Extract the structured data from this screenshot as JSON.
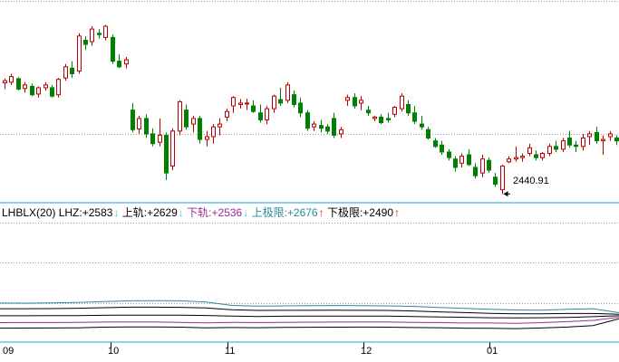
{
  "chart_data": [
    {
      "type": "candlestick",
      "title": "",
      "annotation": {
        "text": "2440.91"
      },
      "candles": [
        [
          2599,
          2605,
          2590,
          2602
        ],
        [
          2600,
          2612,
          2596,
          2608
        ],
        [
          2605,
          2607,
          2588,
          2590
        ],
        [
          2591,
          2600,
          2585,
          2596
        ],
        [
          2594,
          2598,
          2580,
          2582
        ],
        [
          2583,
          2594,
          2578,
          2592
        ],
        [
          2592,
          2600,
          2588,
          2596
        ],
        [
          2592,
          2596,
          2578,
          2580
        ],
        [
          2582,
          2606,
          2578,
          2604
        ],
        [
          2606,
          2626,
          2602,
          2622
        ],
        [
          2620,
          2630,
          2606,
          2612
        ],
        [
          2616,
          2670,
          2612,
          2666
        ],
        [
          2660,
          2666,
          2646,
          2654
        ],
        [
          2658,
          2680,
          2652,
          2676
        ],
        [
          2670,
          2676,
          2662,
          2668
        ],
        [
          2664,
          2682,
          2660,
          2680
        ],
        [
          2664,
          2668,
          2626,
          2630
        ],
        [
          2630,
          2640,
          2620,
          2622
        ],
        [
          2626,
          2636,
          2620,
          2632
        ],
        [
          2560,
          2570,
          2528,
          2532
        ],
        [
          2533,
          2552,
          2526,
          2548
        ],
        [
          2548,
          2554,
          2520,
          2526
        ],
        [
          2526,
          2534,
          2508,
          2512
        ],
        [
          2514,
          2548,
          2508,
          2524
        ],
        [
          2524,
          2528,
          2460,
          2470
        ],
        [
          2480,
          2534,
          2474,
          2530
        ],
        [
          2530,
          2574,
          2524,
          2572
        ],
        [
          2560,
          2568,
          2532,
          2536
        ],
        [
          2540,
          2552,
          2528,
          2548
        ],
        [
          2548,
          2552,
          2512,
          2518
        ],
        [
          2518,
          2530,
          2508,
          2522
        ],
        [
          2522,
          2540,
          2512,
          2536
        ],
        [
          2536,
          2548,
          2524,
          2540
        ],
        [
          2550,
          2562,
          2544,
          2558
        ],
        [
          2566,
          2580,
          2556,
          2578
        ],
        [
          2568,
          2576,
          2562,
          2570
        ],
        [
          2570,
          2576,
          2560,
          2570
        ],
        [
          2566,
          2574,
          2556,
          2558
        ],
        [
          2556,
          2568,
          2542,
          2546
        ],
        [
          2546,
          2566,
          2540,
          2562
        ],
        [
          2562,
          2582,
          2556,
          2580
        ],
        [
          2575,
          2592,
          2566,
          2570
        ],
        [
          2574,
          2600,
          2570,
          2596
        ],
        [
          2582,
          2588,
          2564,
          2568
        ],
        [
          2570,
          2578,
          2550,
          2556
        ],
        [
          2556,
          2560,
          2530,
          2534
        ],
        [
          2536,
          2544,
          2530,
          2540
        ],
        [
          2538,
          2546,
          2528,
          2534
        ],
        [
          2536,
          2540,
          2526,
          2530
        ],
        [
          2548,
          2556,
          2520,
          2524
        ],
        [
          2526,
          2536,
          2520,
          2532
        ],
        [
          2574,
          2582,
          2566,
          2578
        ],
        [
          2578,
          2584,
          2562,
          2566
        ],
        [
          2570,
          2580,
          2560,
          2574
        ],
        [
          2560,
          2566,
          2552,
          2556
        ],
        [
          2548,
          2552,
          2544,
          2550
        ],
        [
          2550,
          2554,
          2540,
          2542
        ],
        [
          2548,
          2556,
          2542,
          2546
        ],
        [
          2554,
          2566,
          2550,
          2564
        ],
        [
          2562,
          2584,
          2558,
          2580
        ],
        [
          2568,
          2574,
          2552,
          2556
        ],
        [
          2556,
          2566,
          2540,
          2544
        ],
        [
          2540,
          2552,
          2532,
          2536
        ],
        [
          2532,
          2536,
          2518,
          2520
        ],
        [
          2516,
          2520,
          2506,
          2508
        ],
        [
          2510,
          2516,
          2496,
          2500
        ],
        [
          2500,
          2504,
          2488,
          2492
        ],
        [
          2490,
          2494,
          2472,
          2478
        ],
        [
          2484,
          2498,
          2478,
          2494
        ],
        [
          2496,
          2504,
          2480,
          2482
        ],
        [
          2478,
          2484,
          2462,
          2466
        ],
        [
          2470,
          2496,
          2464,
          2490
        ],
        [
          2488,
          2492,
          2470,
          2474
        ],
        [
          2464,
          2470,
          2450,
          2454
        ],
        [
          2446,
          2482,
          2440,
          2480
        ],
        [
          2486,
          2494,
          2484,
          2490
        ],
        [
          2490,
          2508,
          2486,
          2492
        ],
        [
          2492,
          2498,
          2486,
          2494
        ],
        [
          2498,
          2512,
          2494,
          2506
        ],
        [
          2496,
          2502,
          2488,
          2492
        ],
        [
          2492,
          2500,
          2488,
          2498
        ],
        [
          2498,
          2512,
          2494,
          2508
        ],
        [
          2508,
          2516,
          2500,
          2504
        ],
        [
          2504,
          2520,
          2500,
          2516
        ],
        [
          2520,
          2530,
          2506,
          2510
        ],
        [
          2510,
          2516,
          2500,
          2508
        ],
        [
          2508,
          2526,
          2502,
          2520
        ],
        [
          2522,
          2530,
          2510,
          2526
        ],
        [
          2528,
          2536,
          2512,
          2516
        ],
        [
          2516,
          2524,
          2496,
          2518
        ],
        [
          2522,
          2530,
          2516,
          2526
        ],
        [
          2520,
          2524,
          2510,
          2516
        ]
      ],
      "ylim": [
        2430,
        2715
      ],
      "grid": true
    },
    {
      "type": "line",
      "title": "LHBLX(20)",
      "ylim": [
        1800,
        5500
      ],
      "series": [
        {
          "name": "LHZ",
          "label": "LHZ:",
          "value_text": "+2583",
          "arrow": "down",
          "color": "#000000",
          "values": [
            2583,
            2582,
            2584,
            2588,
            2595,
            2600,
            2600,
            2598,
            2590,
            2570,
            2560,
            2568,
            2572,
            2570,
            2572,
            2570,
            2560,
            2545,
            2535,
            2520,
            2515,
            2520,
            2528,
            2555,
            2583
          ]
        },
        {
          "name": "上轨",
          "label": "上轨:",
          "value_text": "+2629",
          "arrow": "down",
          "color": "#000000",
          "values": [
            2800,
            2798,
            2802,
            2812,
            2830,
            2845,
            2846,
            2840,
            2820,
            2765,
            2745,
            2750,
            2750,
            2752,
            2750,
            2745,
            2730,
            2700,
            2680,
            2655,
            2640,
            2640,
            2650,
            2650,
            2629
          ]
        },
        {
          "name": "下轨",
          "label": "下轨:",
          "value_text": "+2536",
          "arrow": "down",
          "color": "#9c2a9c",
          "values": [
            2370,
            2372,
            2374,
            2380,
            2388,
            2392,
            2390,
            2380,
            2365,
            2380,
            2372,
            2380,
            2384,
            2388,
            2390,
            2390,
            2380,
            2372,
            2360,
            2358,
            2350,
            2370,
            2400,
            2440,
            2536
          ]
        },
        {
          "name": "上极限",
          "label": "上极限:",
          "value_text": "+2676",
          "arrow": "up",
          "color": "#2a8a9a",
          "values": [
            2970,
            2968,
            2975,
            2990,
            3015,
            3040,
            3045,
            3040,
            3005,
            2900,
            2880,
            2885,
            2890,
            2895,
            2892,
            2885,
            2870,
            2835,
            2810,
            2780,
            2760,
            2755,
            2780,
            2800,
            2676
          ]
        },
        {
          "name": "下极限",
          "label": "下极限:",
          "value_text": "+2490",
          "arrow": "up",
          "color": "#000000",
          "values": [
            2200,
            2202,
            2205,
            2212,
            2230,
            2240,
            2238,
            2230,
            2210,
            2220,
            2215,
            2222,
            2228,
            2232,
            2234,
            2230,
            2220,
            2215,
            2200,
            2195,
            2188,
            2205,
            2235,
            2280,
            2490
          ]
        }
      ]
    }
  ],
  "x_ticks": [
    "09",
    "10",
    "11",
    "12",
    "01"
  ],
  "colors": {
    "up": "#b80000",
    "down": "#008000",
    "grid": "#9a9a9a",
    "separator": "#1aa8d4"
  }
}
